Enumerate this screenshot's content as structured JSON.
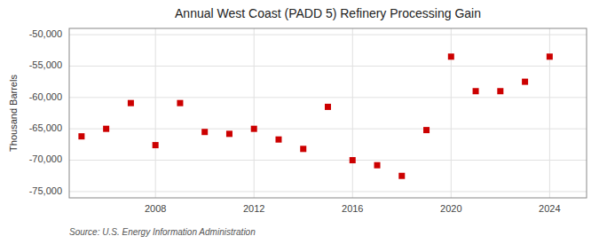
{
  "chart_data": {
    "type": "scatter",
    "title": "Annual West Coast (PADD 5) Refinery Processing Gain",
    "ylabel": "Thousand Barrels",
    "annotations": [
      "Source: U.S. Energy Information Administration"
    ],
    "x": [
      2005,
      2006,
      2007,
      2008,
      2009,
      2010,
      2011,
      2012,
      2013,
      2014,
      2015,
      2016,
      2017,
      2018,
      2019,
      2020,
      2021,
      2022,
      2023,
      2024
    ],
    "values": [
      -66200,
      -65000,
      -60900,
      -67600,
      -60900,
      -65500,
      -65800,
      -65000,
      -66700,
      -68200,
      -61500,
      -70000,
      -70800,
      -72500,
      -65200,
      -53500,
      -59000,
      -59000,
      -57500,
      -53500
    ],
    "color": "#cc0000",
    "marker": "square",
    "xlim": [
      2004.5,
      2025.5
    ],
    "xticks": [
      2008,
      2012,
      2016,
      2020,
      2024
    ],
    "ylim": [
      -76000,
      -49000
    ],
    "yticks": [
      {
        "value": -75000,
        "label": "-75,000"
      },
      {
        "value": -70000,
        "label": "-70,000"
      },
      {
        "value": -65000,
        "label": "-65,000"
      },
      {
        "value": -60000,
        "label": "-60,000"
      },
      {
        "value": -55000,
        "label": "-55,000"
      },
      {
        "value": -50000,
        "label": "-50,000"
      }
    ],
    "grid": true
  }
}
